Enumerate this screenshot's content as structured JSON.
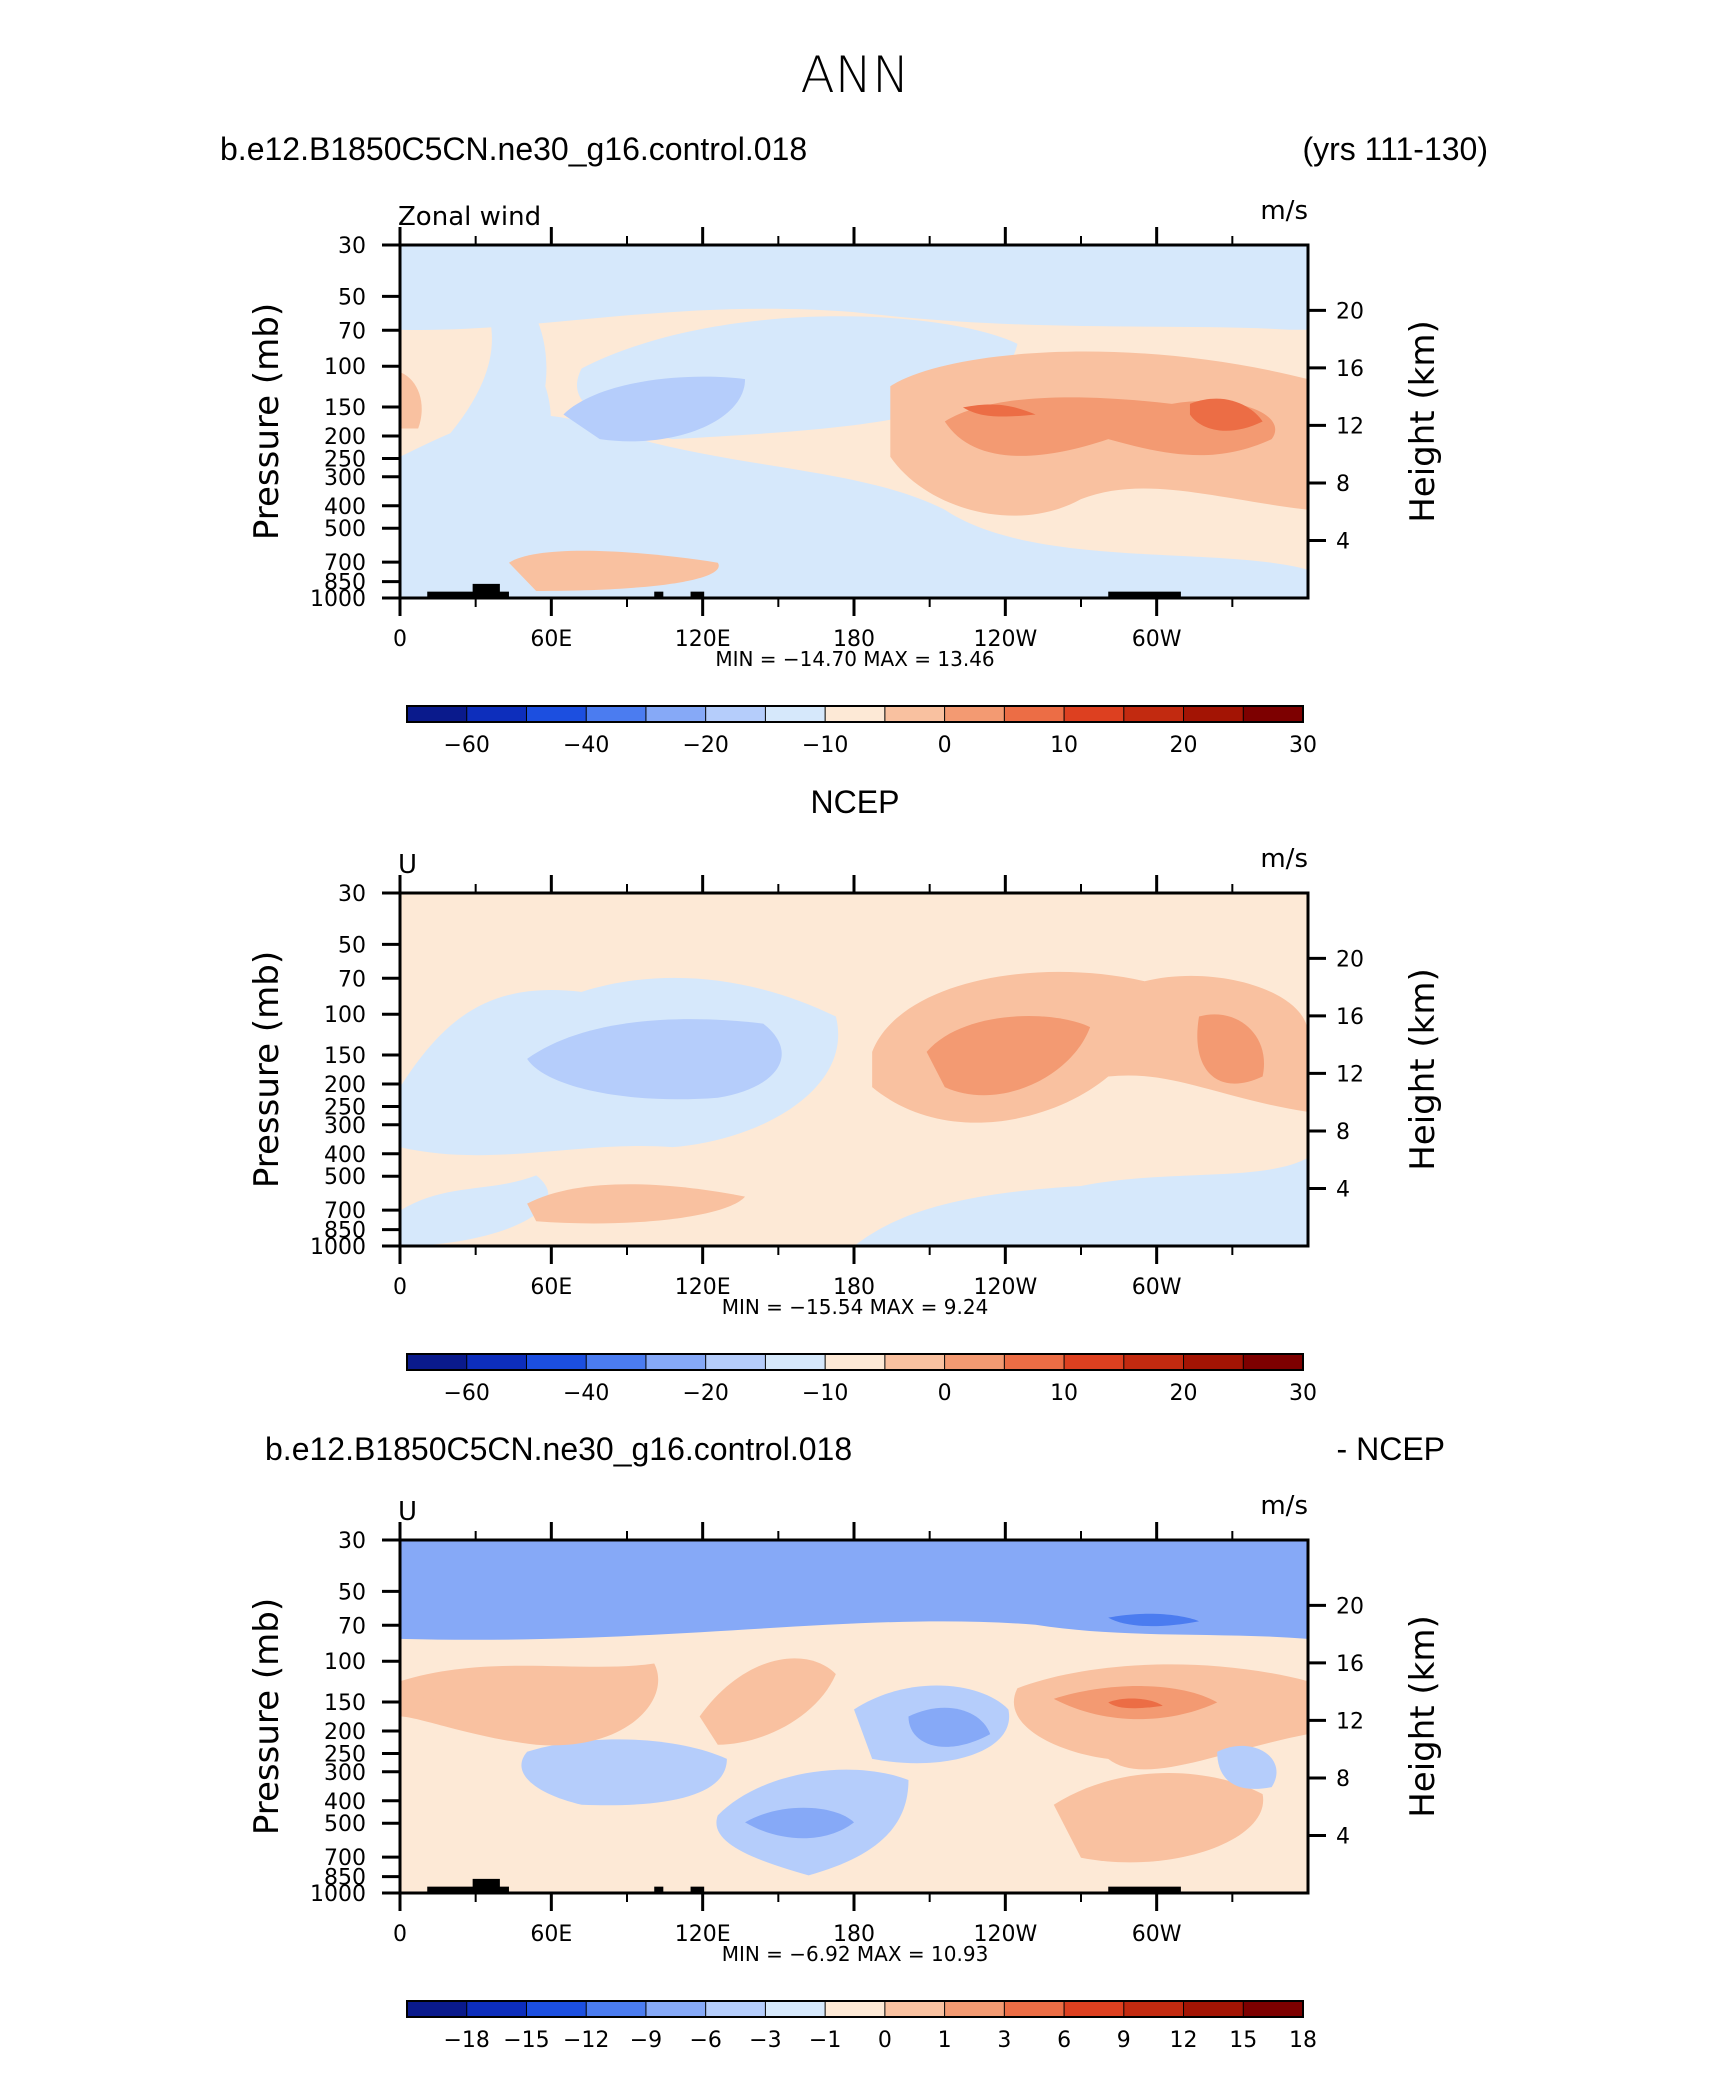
{
  "page_title": "ANN",
  "colors": {
    "neg_dark": "#0a1a8c",
    "neg_light": "#d6e8fb",
    "pos_light": "#fde9d6",
    "pos_dark": "#8b0000",
    "land_mask": "#000000"
  },
  "chart_data": [
    {
      "type": "heatmap",
      "header_left": "b.e12.B1850C5CN.ne30_g16.control.018",
      "header_right": "(yrs 111-130)",
      "var_label": "Zonal wind",
      "units": "m/s",
      "xlabel": "",
      "ylabel": "Pressure (mb)",
      "y2label": "Height (km)",
      "x_ticks": [
        "0",
        "60E",
        "120E",
        "180",
        "120W",
        "60W"
      ],
      "y_ticks": [
        "30",
        "50",
        "70",
        "100",
        "150",
        "200",
        "250",
        "300",
        "400",
        "500",
        "700",
        "850",
        "1000"
      ],
      "y2_ticks": [
        "20",
        "16",
        "12",
        "8",
        "4"
      ],
      "stats": "MIN =  −14.70   MAX =   13.46",
      "colorbar": {
        "ticks": [
          "−60",
          "−40",
          "−20",
          "−10",
          "0",
          "10",
          "20",
          "30"
        ],
        "colors": [
          "#0a1a8c",
          "#0d2ebc",
          "#1c4fe0",
          "#4b7cf0",
          "#86a9f7",
          "#b5cdfb",
          "#d6e8fb",
          "#fde9d6",
          "#f9c1a0",
          "#f39a72",
          "#ec6d45",
          "#dd4020",
          "#c22a10",
          "#a31404",
          "#7d0000"
        ]
      },
      "bands": [
        {
          "level": "neg1",
          "color": "#d6e8fb"
        },
        {
          "level": "neg2",
          "color": "#b5cdfb"
        },
        {
          "level": "pos1",
          "color": "#fde9d6"
        },
        {
          "level": "pos2",
          "color": "#f9c1a0"
        },
        {
          "level": "pos3",
          "color": "#f39a72"
        },
        {
          "level": "pos4",
          "color": "#ec6d45"
        }
      ]
    },
    {
      "type": "heatmap",
      "header_center": "NCEP",
      "var_label": "U",
      "units": "m/s",
      "ylabel": "Pressure (mb)",
      "y2label": "Height (km)",
      "x_ticks": [
        "0",
        "60E",
        "120E",
        "180",
        "120W",
        "60W"
      ],
      "y_ticks": [
        "30",
        "50",
        "70",
        "100",
        "150",
        "200",
        "250",
        "300",
        "400",
        "500",
        "700",
        "850",
        "1000"
      ],
      "y2_ticks": [
        "20",
        "16",
        "12",
        "8",
        "4"
      ],
      "stats": "MIN =  −15.54   MAX =    9.24",
      "colorbar": {
        "ticks": [
          "−60",
          "−40",
          "−20",
          "−10",
          "0",
          "10",
          "20",
          "30"
        ],
        "colors": [
          "#0a1a8c",
          "#0d2ebc",
          "#1c4fe0",
          "#4b7cf0",
          "#86a9f7",
          "#b5cdfb",
          "#d6e8fb",
          "#fde9d6",
          "#f9c1a0",
          "#f39a72",
          "#ec6d45",
          "#dd4020",
          "#c22a10",
          "#a31404",
          "#7d0000"
        ]
      }
    },
    {
      "type": "heatmap",
      "header_left": "b.e12.B1850C5CN.ne30_g16.control.018",
      "header_right": "- NCEP",
      "var_label": "U",
      "units": "m/s",
      "ylabel": "Pressure (mb)",
      "y2label": "Height (km)",
      "x_ticks": [
        "0",
        "60E",
        "120E",
        "180",
        "120W",
        "60W"
      ],
      "y_ticks": [
        "30",
        "50",
        "70",
        "100",
        "150",
        "200",
        "250",
        "300",
        "400",
        "500",
        "700",
        "850",
        "1000"
      ],
      "y2_ticks": [
        "20",
        "16",
        "12",
        "8",
        "4"
      ],
      "stats": "MIN =    −6.92   MAX =   10.93",
      "colorbar": {
        "ticks": [
          "−18",
          "−15",
          "−12",
          "−9",
          "−6",
          "−3",
          "−1",
          "0",
          "1",
          "3",
          "6",
          "9",
          "12",
          "15",
          "18"
        ],
        "colors": [
          "#0a1a8c",
          "#0d2ebc",
          "#1c4fe0",
          "#4b7cf0",
          "#86a9f7",
          "#b5cdfb",
          "#d6e8fb",
          "#fde9d6",
          "#f9c1a0",
          "#f39a72",
          "#ec6d45",
          "#dd4020",
          "#c22a10",
          "#a31404",
          "#7d0000"
        ]
      }
    }
  ]
}
